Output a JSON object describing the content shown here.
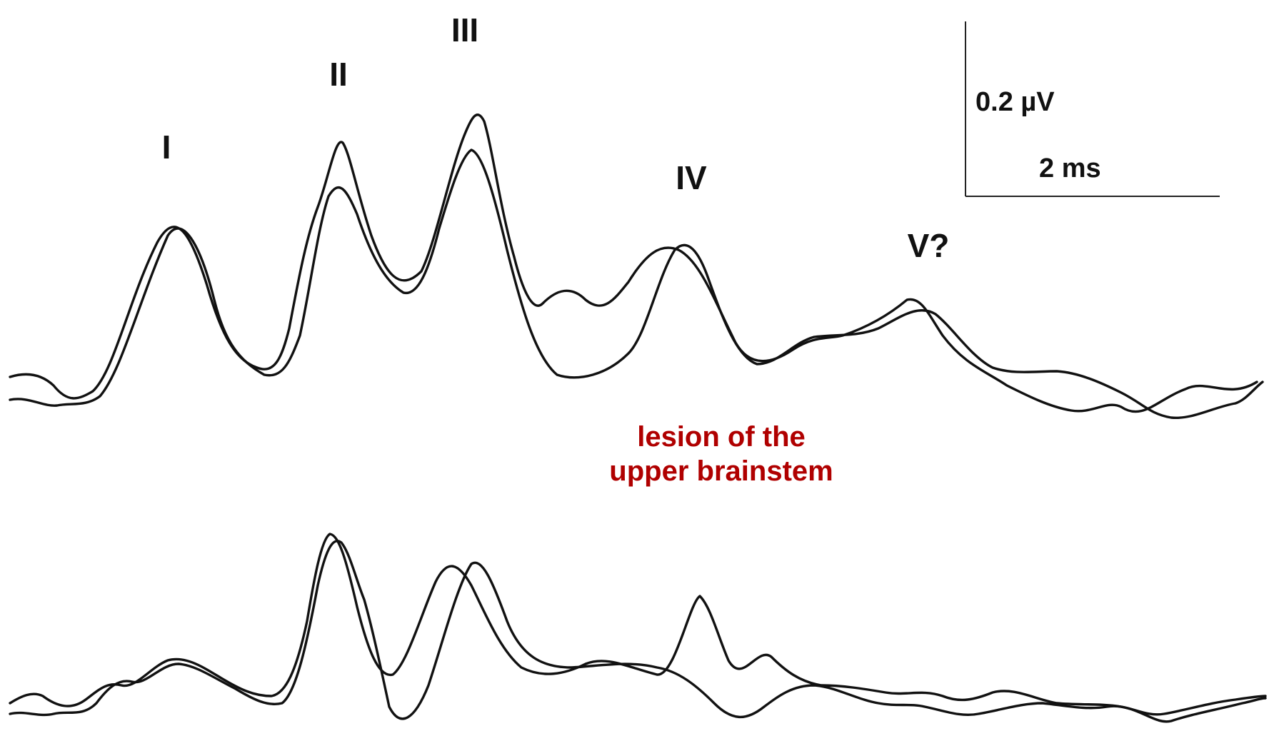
{
  "peak_labels": [
    "I",
    "II",
    "III",
    "IV",
    "V?"
  ],
  "scale_bar": {
    "amplitude": "0.2 µV",
    "time": "2 ms"
  },
  "caption": {
    "line1": "lesion of the",
    "line2": "upper brainstem"
  },
  "colors": {
    "trace": "#111111",
    "caption": "#b00000",
    "background": "#ffffff"
  }
}
